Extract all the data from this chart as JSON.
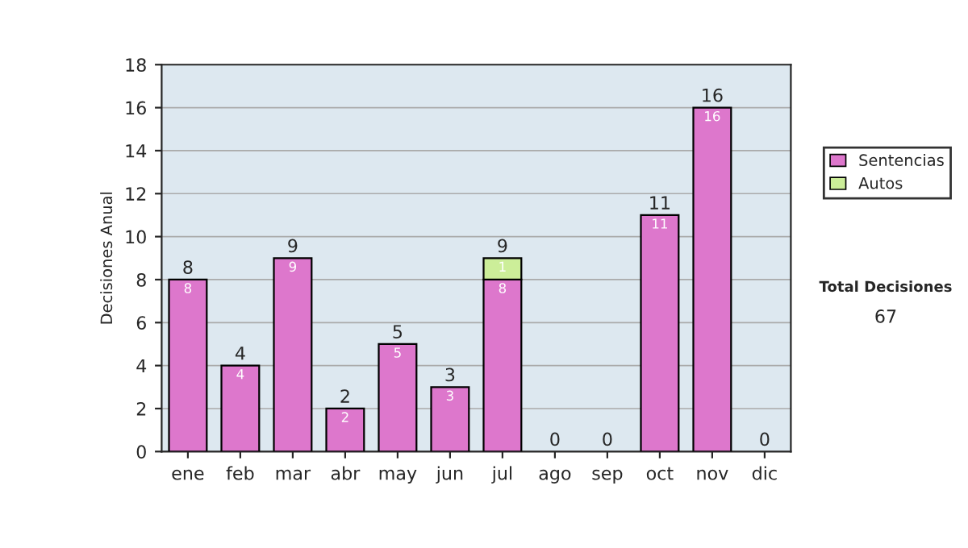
{
  "chart_data": {
    "type": "bar",
    "ylabel": "Decisiones Anual",
    "categories": [
      "ene",
      "feb",
      "mar",
      "abr",
      "may",
      "jun",
      "jul",
      "ago",
      "sep",
      "oct",
      "nov",
      "dic"
    ],
    "stacked": true,
    "series": [
      {
        "name": "Sentencias",
        "color": "#dd77cc",
        "values": [
          8,
          4,
          9,
          2,
          5,
          3,
          8,
          0,
          0,
          11,
          16,
          0
        ],
        "value_labels": [
          "8",
          "4",
          "9",
          "2",
          "5",
          "3",
          "8",
          null,
          null,
          "11",
          "16",
          null
        ]
      },
      {
        "name": "Autos",
        "color": "#ccee99",
        "values": [
          0,
          0,
          0,
          0,
          0,
          0,
          1,
          0,
          0,
          0,
          0,
          0
        ],
        "value_labels": [
          null,
          null,
          null,
          null,
          null,
          null,
          "1",
          null,
          null,
          null,
          null,
          null
        ]
      }
    ],
    "totals": [
      "8",
      "4",
      "9",
      "2",
      "5",
      "3",
      "9",
      "0",
      "0",
      "11",
      "16",
      "0"
    ],
    "ylim": [
      0,
      18
    ],
    "yticks": [
      0,
      2,
      4,
      6,
      8,
      10,
      12,
      14,
      16,
      18
    ],
    "grid": "y",
    "legend": "right",
    "annotations": [
      "Total Decisiones",
      "67"
    ]
  }
}
